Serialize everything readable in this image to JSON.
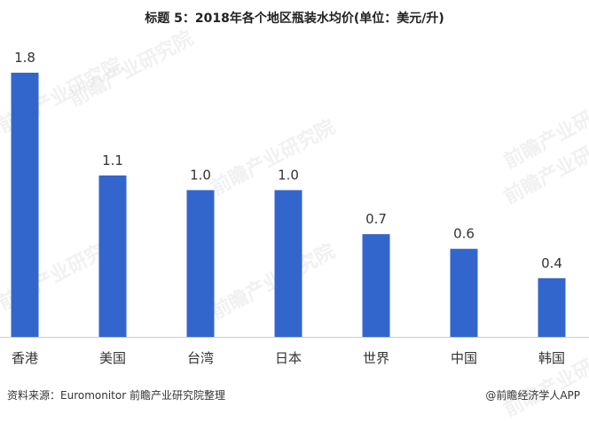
{
  "header": {
    "title": "标题 5：2018年各个地区瓶装水均价(单位：美元/升)"
  },
  "chart_data": {
    "type": "bar",
    "categories": [
      "香港",
      "美国",
      "台湾",
      "日本",
      "世界",
      "中国",
      "韩国"
    ],
    "values": [
      1.8,
      1.1,
      1.0,
      1.0,
      0.7,
      0.6,
      0.4
    ],
    "data_labels": [
      "1.8",
      "1.1",
      "1.0",
      "1.0",
      "0.7",
      "0.6",
      "0.4"
    ],
    "title": "标题 5：2018年各个地区瓶装水均价(单位：美元/升)",
    "xlabel": "",
    "ylabel": "",
    "ylim": [
      0,
      1.8
    ],
    "grid": false,
    "legend": "none",
    "bar_color": "#3366cc"
  },
  "footer": {
    "source": "资料来源：Euromonitor 前瞻产业研究院整理",
    "brand": "@前瞻经济学人APP"
  },
  "watermark": {
    "text": "前瞻产业研究院"
  }
}
